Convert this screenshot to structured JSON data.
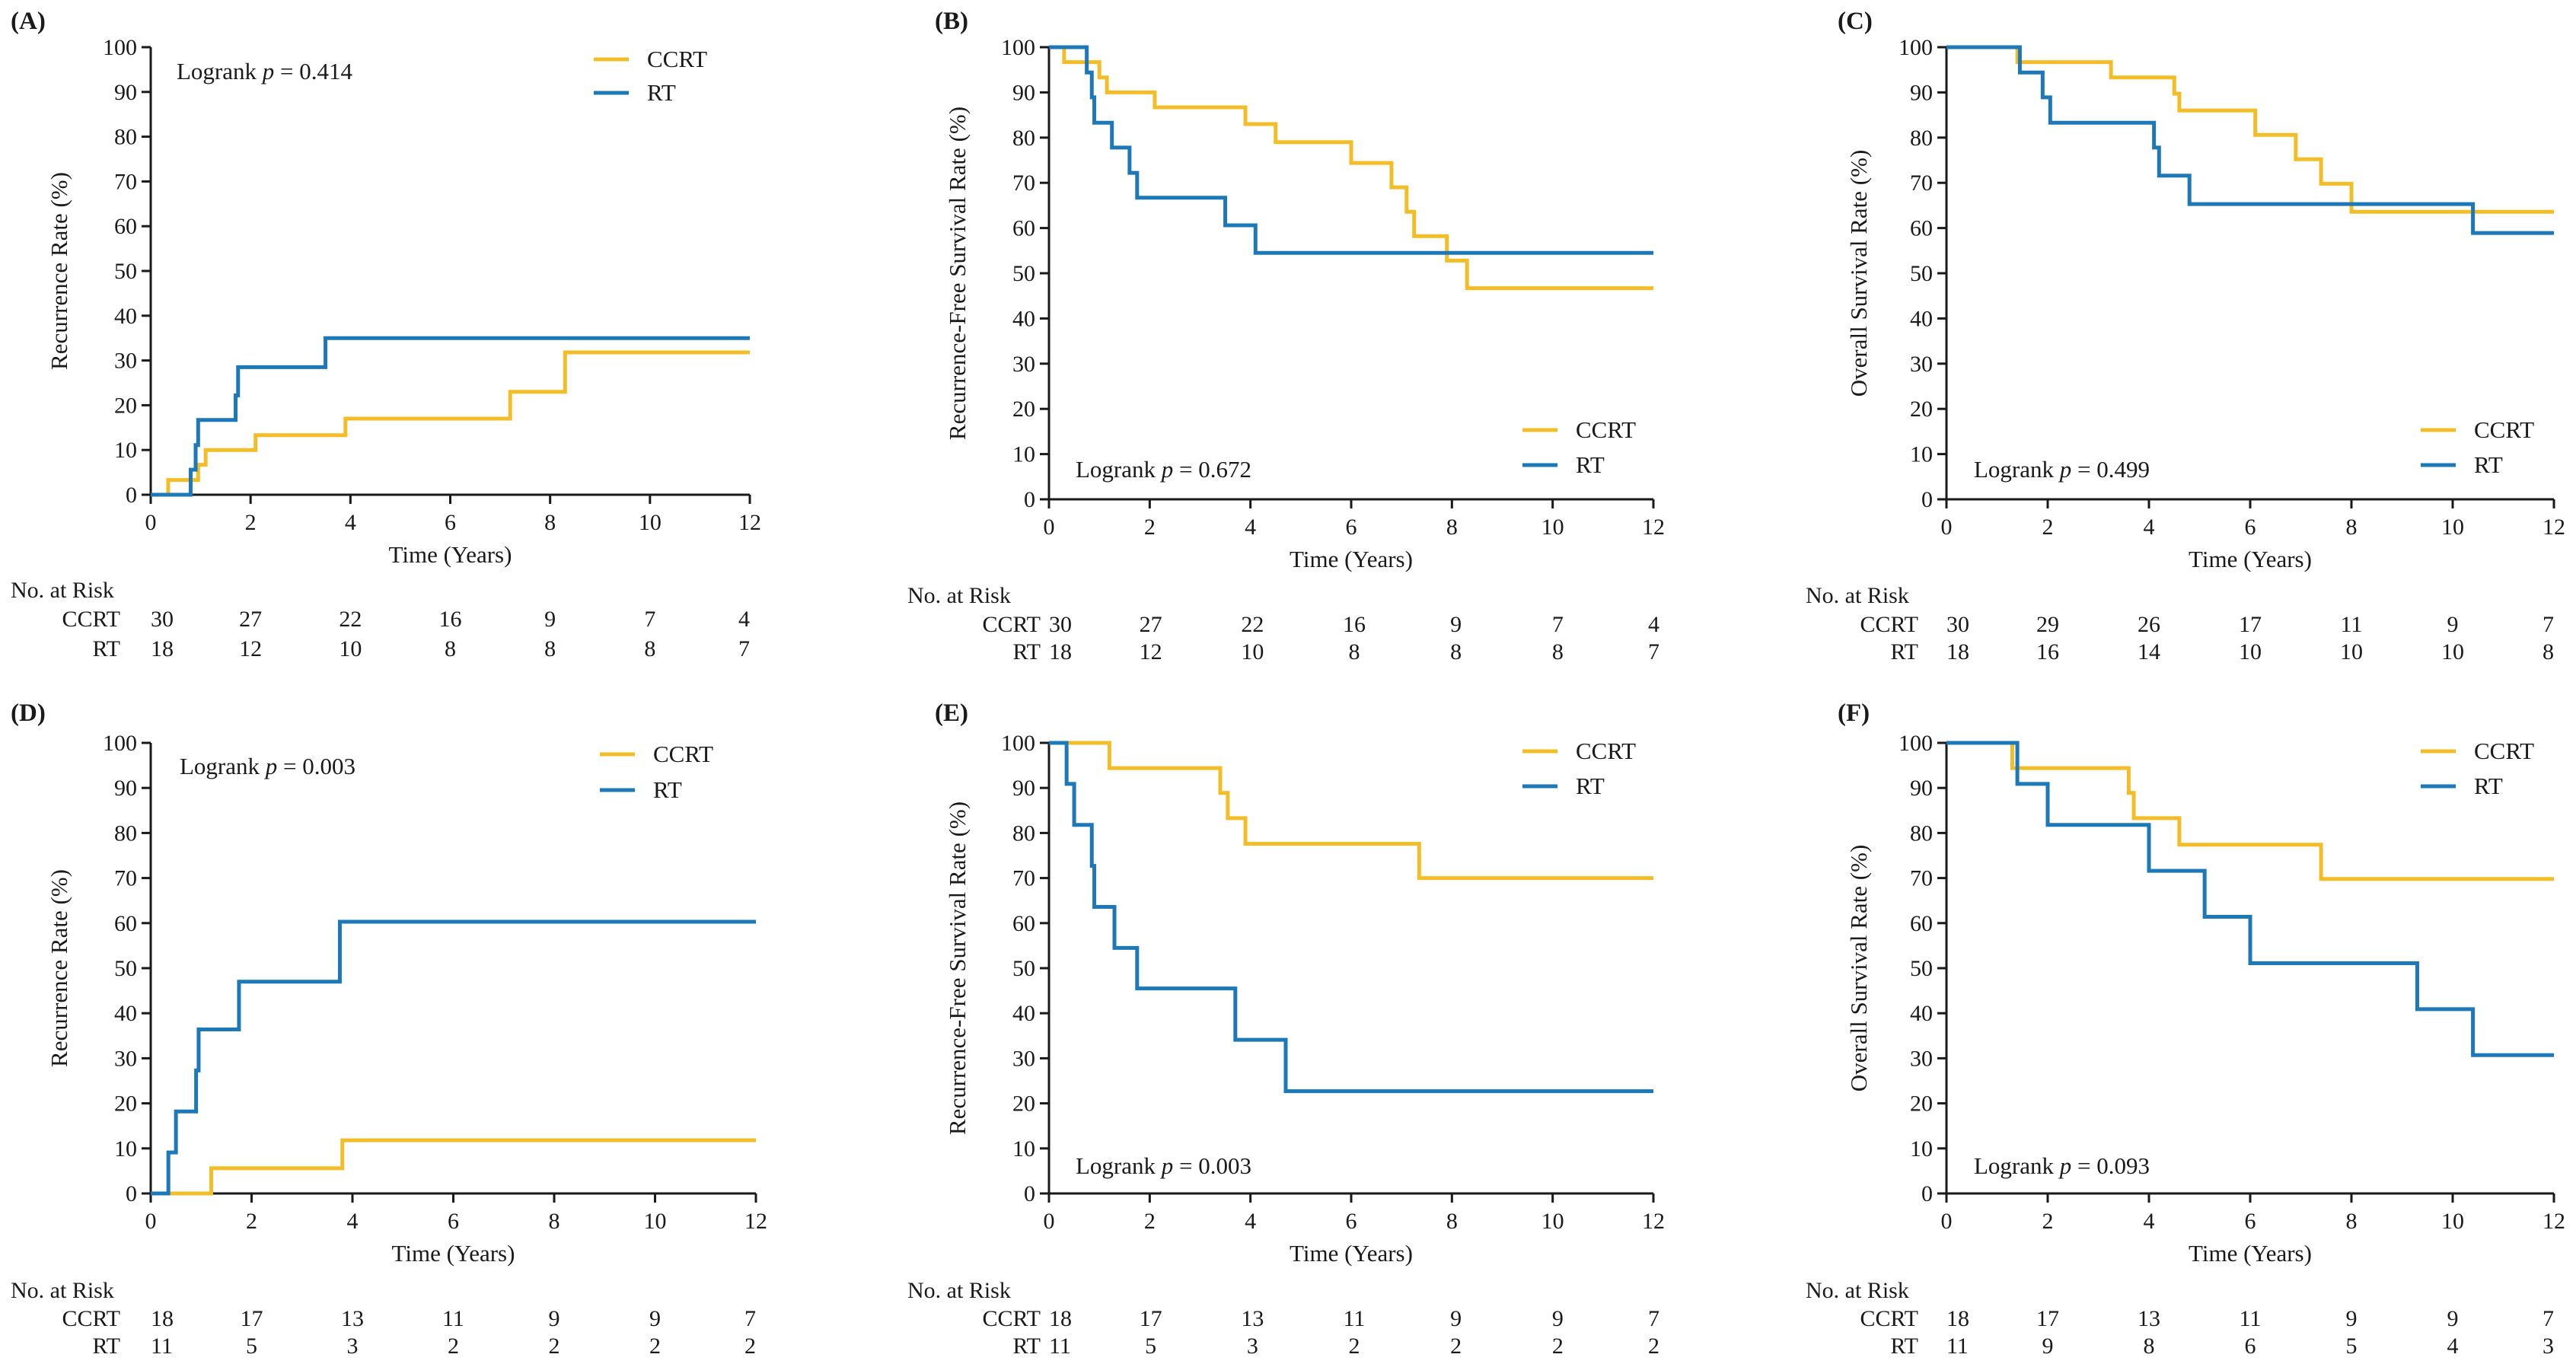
{
  "colors": {
    "ccrt": "#F3BD28",
    "rt": "#1D78B8",
    "axis": "#1a1a1a"
  },
  "risk_header": "No. at Risk",
  "italic_p": "p",
  "chart_data": [
    {
      "type": "line",
      "step": true,
      "panel": "(A)",
      "ylabel": "Recurrence Rate (%)",
      "xlabel": "Time (Years)",
      "xlim": [
        0,
        12
      ],
      "ylim": [
        0,
        100
      ],
      "xticks": [
        "0",
        "2",
        "4",
        "6",
        "8",
        "10",
        "12"
      ],
      "yticks": [
        "0",
        "10",
        "20",
        "30",
        "40",
        "50",
        "60",
        "70",
        "80",
        "90",
        "100"
      ],
      "logrank": {
        "prefix": "Logrank ",
        "p": "p",
        "suffix": " = 0.414"
      },
      "legend": [
        "CCRT",
        "RT"
      ],
      "series": [
        {
          "name": "CCRT",
          "steps": [
            [
              0,
              0
            ],
            [
              0.35,
              3.3
            ],
            [
              0.95,
              6.7
            ],
            [
              1.1,
              10
            ],
            [
              2.1,
              13.3
            ],
            [
              3.9,
              17
            ],
            [
              7.2,
              23
            ],
            [
              8.3,
              31.8
            ],
            [
              12,
              31.8
            ]
          ]
        },
        {
          "name": "RT",
          "steps": [
            [
              0,
              0
            ],
            [
              0.8,
              5.6
            ],
            [
              0.9,
              11.1
            ],
            [
              0.95,
              16.7
            ],
            [
              1.7,
              22.2
            ],
            [
              1.75,
              28.5
            ],
            [
              3.5,
              35
            ],
            [
              12,
              35
            ]
          ]
        }
      ],
      "risk": [
        {
          "label": "CCRT",
          "values": [
            "30",
            "27",
            "22",
            "16",
            "9",
            "7",
            "4"
          ]
        },
        {
          "label": "RT",
          "values": [
            "18",
            "12",
            "10",
            "8",
            "8",
            "8",
            "7"
          ]
        }
      ]
    },
    {
      "type": "line",
      "step": true,
      "panel": "(B)",
      "ylabel": "Recurrence-Free Survival Rate (%)",
      "xlabel": "Time (Years)",
      "xlim": [
        0,
        12
      ],
      "ylim": [
        0,
        100
      ],
      "xticks": [
        "0",
        "2",
        "4",
        "6",
        "8",
        "10",
        "12"
      ],
      "yticks": [
        "0",
        "10",
        "20",
        "30",
        "40",
        "50",
        "60",
        "70",
        "80",
        "90",
        "100"
      ],
      "logrank": {
        "prefix": "Logrank ",
        "p": "p",
        "suffix": " = 0.672"
      },
      "legend": [
        "CCRT",
        "RT"
      ],
      "series": [
        {
          "name": "CCRT",
          "steps": [
            [
              0,
              100
            ],
            [
              0.3,
              96.7
            ],
            [
              1.0,
              93.3
            ],
            [
              1.15,
              90
            ],
            [
              2.1,
              86.7
            ],
            [
              3.9,
              83
            ],
            [
              4.5,
              79
            ],
            [
              6.0,
              74.4
            ],
            [
              6.8,
              69
            ],
            [
              7.1,
              63.6
            ],
            [
              7.25,
              58.2
            ],
            [
              7.9,
              52.8
            ],
            [
              8.3,
              46.7
            ],
            [
              12,
              46.7
            ]
          ]
        },
        {
          "name": "RT",
          "steps": [
            [
              0,
              100
            ],
            [
              0.75,
              94.4
            ],
            [
              0.85,
              88.9
            ],
            [
              0.9,
              83.3
            ],
            [
              1.25,
              77.8
            ],
            [
              1.6,
              72.2
            ],
            [
              1.75,
              66.7
            ],
            [
              3.5,
              60.6
            ],
            [
              4.1,
              54.5
            ],
            [
              12,
              54.5
            ]
          ]
        }
      ],
      "risk": [
        {
          "label": "CCRT",
          "values": [
            "30",
            "27",
            "22",
            "16",
            "9",
            "7",
            "4"
          ]
        },
        {
          "label": "RT",
          "values": [
            "18",
            "12",
            "10",
            "8",
            "8",
            "8",
            "7"
          ]
        }
      ]
    },
    {
      "type": "line",
      "step": true,
      "panel": "(C)",
      "ylabel": "Overall Survival Rate (%)",
      "xlabel": "Time (Years)",
      "xlim": [
        0,
        12
      ],
      "ylim": [
        0,
        100
      ],
      "xticks": [
        "0",
        "2",
        "4",
        "6",
        "8",
        "10",
        "12"
      ],
      "yticks": [
        "0",
        "10",
        "20",
        "30",
        "40",
        "50",
        "60",
        "70",
        "80",
        "90",
        "100"
      ],
      "logrank": {
        "prefix": "Logrank ",
        "p": "p",
        "suffix": " = 0.499"
      },
      "legend": [
        "CCRT",
        "RT"
      ],
      "series": [
        {
          "name": "CCRT",
          "steps": [
            [
              0,
              100
            ],
            [
              1.4,
              96.7
            ],
            [
              3.25,
              93.3
            ],
            [
              4.5,
              89.7
            ],
            [
              4.6,
              86
            ],
            [
              6.1,
              80.6
            ],
            [
              6.9,
              75.2
            ],
            [
              7.4,
              69.8
            ],
            [
              8.0,
              63.6
            ],
            [
              12,
              63.6
            ]
          ]
        },
        {
          "name": "RT",
          "steps": [
            [
              0,
              100
            ],
            [
              1.45,
              94.4
            ],
            [
              1.9,
              88.9
            ],
            [
              2.05,
              83.3
            ],
            [
              4.1,
              77.8
            ],
            [
              4.2,
              71.6
            ],
            [
              4.8,
              65.3
            ],
            [
              10.4,
              58.9
            ],
            [
              12,
              58.9
            ]
          ]
        }
      ],
      "risk": [
        {
          "label": "CCRT",
          "values": [
            "30",
            "29",
            "26",
            "17",
            "11",
            "9",
            "7"
          ]
        },
        {
          "label": "RT",
          "values": [
            "18",
            "16",
            "14",
            "10",
            "10",
            "10",
            "8"
          ]
        }
      ]
    },
    {
      "type": "line",
      "step": true,
      "panel": "(D)",
      "ylabel": "Recurrence Rate (%)",
      "xlabel": "Time (Years)",
      "xlim": [
        0,
        12
      ],
      "ylim": [
        0,
        100
      ],
      "xticks": [
        "0",
        "2",
        "4",
        "6",
        "8",
        "10",
        "12"
      ],
      "yticks": [
        "0",
        "10",
        "20",
        "30",
        "40",
        "50",
        "60",
        "70",
        "80",
        "90",
        "100"
      ],
      "logrank": {
        "prefix": "Logrank ",
        "p": "p",
        "suffix": " = 0.003"
      },
      "legend": [
        "CCRT",
        "RT"
      ],
      "series": [
        {
          "name": "CCRT",
          "steps": [
            [
              0,
              0
            ],
            [
              1.2,
              5.6
            ],
            [
              3.8,
              11.8
            ],
            [
              12,
              11.8
            ]
          ]
        },
        {
          "name": "RT",
          "steps": [
            [
              0,
              0
            ],
            [
              0.35,
              9.1
            ],
            [
              0.5,
              18.2
            ],
            [
              0.9,
              27.3
            ],
            [
              0.95,
              36.4
            ],
            [
              1.75,
              47
            ],
            [
              3.75,
              60.3
            ],
            [
              12,
              60.3
            ]
          ]
        }
      ],
      "risk": [
        {
          "label": "CCRT",
          "values": [
            "18",
            "17",
            "13",
            "11",
            "9",
            "9",
            "7"
          ]
        },
        {
          "label": "RT",
          "values": [
            "11",
            "5",
            "3",
            "2",
            "2",
            "2",
            "2"
          ]
        }
      ]
    },
    {
      "type": "line",
      "step": true,
      "panel": "(E)",
      "ylabel": "Recurrence-Free Survival Rate (%)",
      "xlabel": "Time (Years)",
      "xlim": [
        0,
        12
      ],
      "ylim": [
        0,
        100
      ],
      "xticks": [
        "0",
        "2",
        "4",
        "6",
        "8",
        "10",
        "12"
      ],
      "yticks": [
        "0",
        "10",
        "20",
        "30",
        "40",
        "50",
        "60",
        "70",
        "80",
        "90",
        "100"
      ],
      "logrank": {
        "prefix": "Logrank ",
        "p": "p",
        "suffix": " = 0.003"
      },
      "legend": [
        "CCRT",
        "RT"
      ],
      "series": [
        {
          "name": "CCRT",
          "steps": [
            [
              0,
              100
            ],
            [
              1.2,
              94.4
            ],
            [
              3.4,
              88.9
            ],
            [
              3.55,
              83.3
            ],
            [
              3.9,
              77.6
            ],
            [
              7.35,
              70
            ],
            [
              12,
              70
            ]
          ]
        },
        {
          "name": "RT",
          "steps": [
            [
              0,
              100
            ],
            [
              0.35,
              90.9
            ],
            [
              0.5,
              81.8
            ],
            [
              0.85,
              72.7
            ],
            [
              0.9,
              63.6
            ],
            [
              1.3,
              54.5
            ],
            [
              1.75,
              45.5
            ],
            [
              3.7,
              34.1
            ],
            [
              4.7,
              22.7
            ],
            [
              12,
              22.7
            ]
          ]
        }
      ],
      "risk": [
        {
          "label": "CCRT",
          "values": [
            "18",
            "17",
            "13",
            "11",
            "9",
            "9",
            "7"
          ]
        },
        {
          "label": "RT",
          "values": [
            "11",
            "5",
            "3",
            "2",
            "2",
            "2",
            "2"
          ]
        }
      ]
    },
    {
      "type": "line",
      "step": true,
      "panel": "(F)",
      "ylabel": "Overall Survival Rate (%)",
      "xlabel": "Time (Years)",
      "xlim": [
        0,
        12
      ],
      "ylim": [
        0,
        100
      ],
      "xticks": [
        "0",
        "2",
        "4",
        "6",
        "8",
        "10",
        "12"
      ],
      "yticks": [
        "0",
        "10",
        "20",
        "30",
        "40",
        "50",
        "60",
        "70",
        "80",
        "90",
        "100"
      ],
      "logrank": {
        "prefix": "Logrank ",
        "p": "p",
        "suffix": " = 0.093"
      },
      "legend": [
        "CCRT",
        "RT"
      ],
      "series": [
        {
          "name": "CCRT",
          "steps": [
            [
              0,
              100
            ],
            [
              1.3,
              94.4
            ],
            [
              3.6,
              88.9
            ],
            [
              3.7,
              83.3
            ],
            [
              4.6,
              77.4
            ],
            [
              7.4,
              69.8
            ],
            [
              12,
              69.8
            ]
          ]
        },
        {
          "name": "RT",
          "steps": [
            [
              0,
              100
            ],
            [
              1.4,
              90.9
            ],
            [
              2.0,
              81.8
            ],
            [
              4.0,
              71.6
            ],
            [
              5.1,
              61.4
            ],
            [
              6.0,
              51.1
            ],
            [
              9.3,
              40.9
            ],
            [
              10.4,
              30.7
            ],
            [
              12,
              30.7
            ]
          ]
        }
      ],
      "risk": [
        {
          "label": "CCRT",
          "values": [
            "18",
            "17",
            "13",
            "11",
            "9",
            "9",
            "7"
          ]
        },
        {
          "label": "RT",
          "values": [
            "11",
            "9",
            "8",
            "6",
            "5",
            "4",
            "3"
          ]
        }
      ]
    }
  ]
}
